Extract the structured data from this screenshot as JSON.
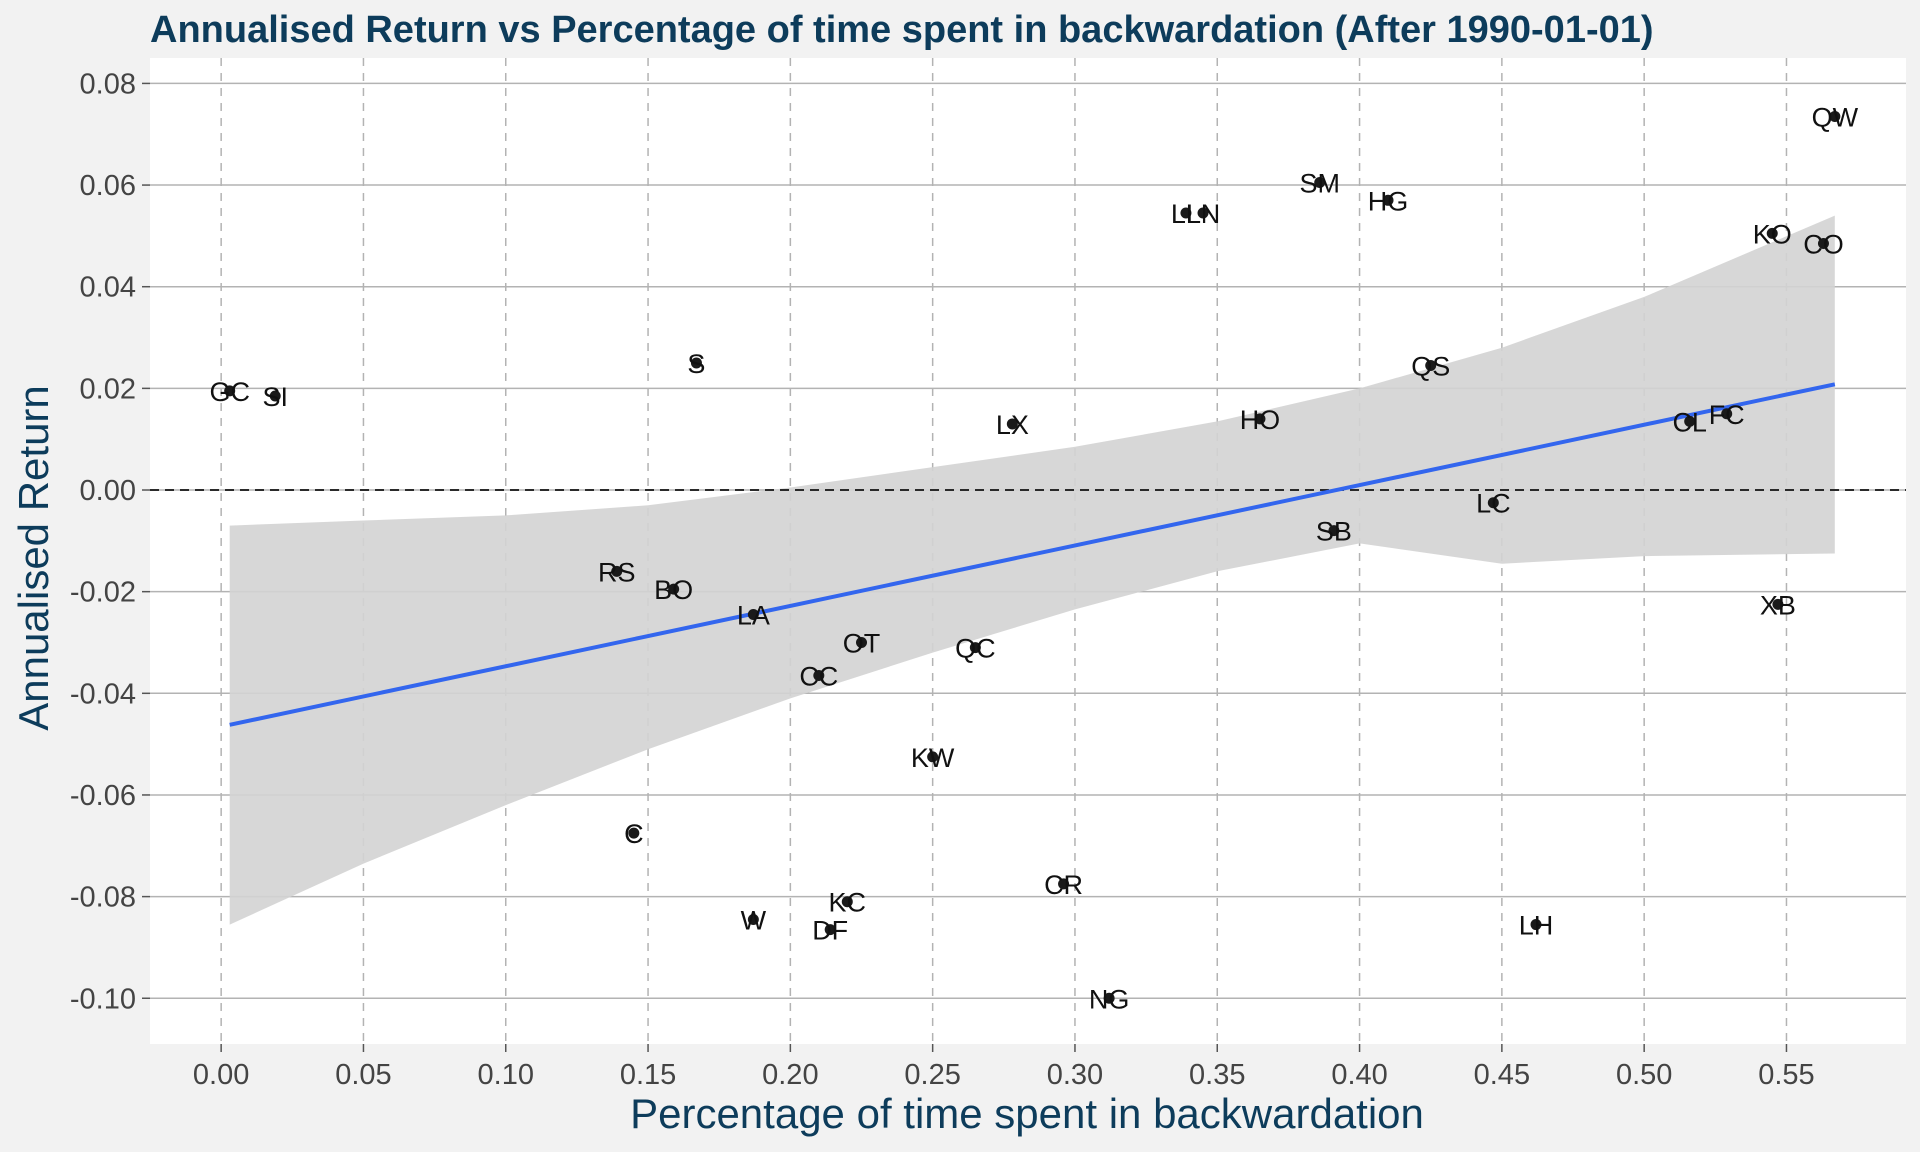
{
  "chart_data": {
    "type": "scatter",
    "title": "Annualised Return vs Percentage of time spent in backwardation (After 1990-01-01)",
    "xlabel": "Percentage of time spent in backwardation",
    "ylabel": "Annualised Return",
    "xlim": [
      -0.025,
      0.592
    ],
    "ylim": [
      -0.109,
      0.085
    ],
    "x_ticks": [
      "0.00",
      "0.05",
      "0.10",
      "0.15",
      "0.20",
      "0.25",
      "0.30",
      "0.35",
      "0.40",
      "0.45",
      "0.50",
      "0.55"
    ],
    "y_ticks": [
      "0.08",
      "0.06",
      "0.04",
      "0.02",
      "0.00",
      "-0.02",
      "-0.04",
      "-0.06",
      "-0.08",
      "-0.10"
    ],
    "grid": true,
    "reference_line_y": 0,
    "points": [
      {
        "label": "GC",
        "x": 0.003,
        "y": 0.0195
      },
      {
        "label": "SI",
        "x": 0.019,
        "y": 0.0185
      },
      {
        "label": "S",
        "x": 0.167,
        "y": 0.025
      },
      {
        "label": "LX",
        "x": 0.278,
        "y": 0.013
      },
      {
        "label": "LL",
        "x": 0.339,
        "y": 0.0545
      },
      {
        "label": "LN",
        "x": 0.345,
        "y": 0.0545
      },
      {
        "label": "SM",
        "x": 0.386,
        "y": 0.0605
      },
      {
        "label": "HG",
        "x": 0.41,
        "y": 0.057
      },
      {
        "label": "HO",
        "x": 0.365,
        "y": 0.014
      },
      {
        "label": "QS",
        "x": 0.425,
        "y": 0.0245
      },
      {
        "label": "CL",
        "x": 0.516,
        "y": 0.0135
      },
      {
        "label": "FC",
        "x": 0.529,
        "y": 0.015
      },
      {
        "label": "KO",
        "x": 0.545,
        "y": 0.0505
      },
      {
        "label": "CO",
        "x": 0.563,
        "y": 0.0485
      },
      {
        "label": "QW",
        "x": 0.567,
        "y": 0.0735
      },
      {
        "label": "LC",
        "x": 0.447,
        "y": -0.0025
      },
      {
        "label": "SB",
        "x": 0.391,
        "y": -0.008
      },
      {
        "label": "XB",
        "x": 0.547,
        "y": -0.0225
      },
      {
        "label": "RS",
        "x": 0.139,
        "y": -0.016
      },
      {
        "label": "BO",
        "x": 0.159,
        "y": -0.0195
      },
      {
        "label": "LA",
        "x": 0.187,
        "y": -0.0245
      },
      {
        "label": "OT",
        "x": 0.225,
        "y": -0.03
      },
      {
        "label": "QC",
        "x": 0.265,
        "y": -0.031
      },
      {
        "label": "CC",
        "x": 0.21,
        "y": -0.0365
      },
      {
        "label": "KW",
        "x": 0.25,
        "y": -0.0525
      },
      {
        "label": "C",
        "x": 0.145,
        "y": -0.0675
      },
      {
        "label": "W",
        "x": 0.187,
        "y": -0.0845
      },
      {
        "label": "KC",
        "x": 0.22,
        "y": -0.081
      },
      {
        "label": "DF",
        "x": 0.214,
        "y": -0.0865
      },
      {
        "label": "CR",
        "x": 0.296,
        "y": -0.0775
      },
      {
        "label": "NG",
        "x": 0.312,
        "y": -0.1
      },
      {
        "label": "LH",
        "x": 0.462,
        "y": -0.0855
      }
    ],
    "trend_line": {
      "x": [
        0.003,
        0.567
      ],
      "y": [
        -0.0462,
        0.0208
      ]
    },
    "confidence_band": {
      "x": [
        0.003,
        0.05,
        0.1,
        0.15,
        0.2,
        0.25,
        0.3,
        0.35,
        0.4,
        0.45,
        0.5,
        0.567
      ],
      "upper": [
        -0.007,
        -0.006,
        -0.005,
        -0.003,
        0.0005,
        0.0045,
        0.0085,
        0.0135,
        0.02,
        0.028,
        0.038,
        0.054
      ],
      "lower": [
        -0.0855,
        -0.0735,
        -0.062,
        -0.051,
        -0.041,
        -0.032,
        -0.0235,
        -0.016,
        -0.0105,
        -0.0145,
        -0.013,
        -0.0125
      ]
    },
    "colors": {
      "trend": "#3366ee",
      "band": "#d3d3d3",
      "grid": "#b3b3b3",
      "title": "#0d3c5b",
      "point": "#1a1a1a",
      "panel": "#ffffff",
      "background": "#f2f2f2"
    }
  }
}
